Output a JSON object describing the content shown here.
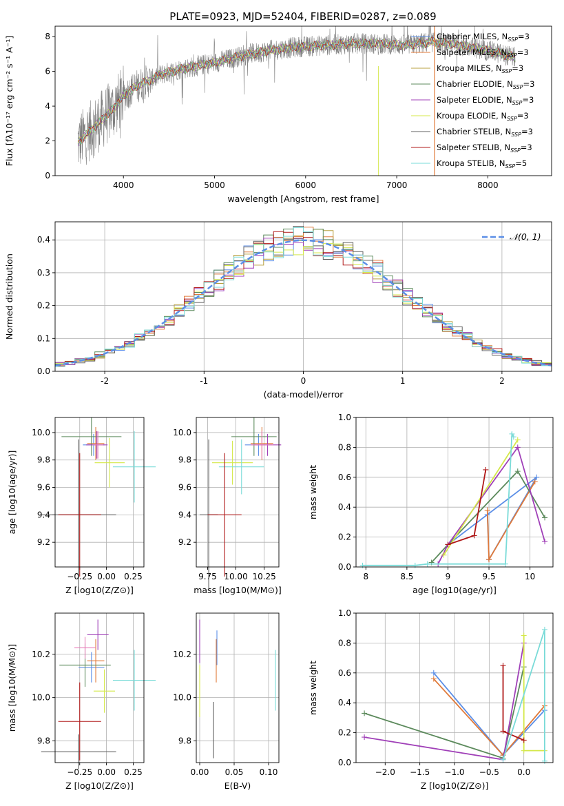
{
  "figure_title": "PLATE=0923, MJD=52404, FIBERID=0287, z=0.089",
  "colors": {
    "chabrier_miles": "#5b8ee6",
    "salpeter_miles": "#e07a3a",
    "kroupa_miles": "#b8a040",
    "chabrier_elodie": "#5c8a5c",
    "salpeter_elodie": "#a040b8",
    "kroupa_elodie": "#d4e84a",
    "chabrier_stelib": "#606060",
    "salpeter_stelib": "#b01818",
    "kroupa_stelib": "#7adbd8",
    "observed": "#808080",
    "gauss": "#5b8ee6",
    "pink": "#e87ab8"
  },
  "chart_data": [
    {
      "type": "line",
      "title": "PLATE=0923, MJD=52404, FIBERID=0287, z=0.089",
      "xlabel": "wavelength [Angstrom, rest frame]",
      "ylabel": "Flux [fλ10⁻¹⁷ erg cm⁻² s⁻¹ A⁻¹]",
      "xlim": [
        3250,
        8700
      ],
      "ylim": [
        0,
        8.6
      ],
      "xticks": [
        4000,
        5000,
        6000,
        7000,
        8000
      ],
      "yticks": [
        0,
        2,
        4,
        6,
        8
      ],
      "grid": false,
      "legend": [
        "Chabrier MILES, NSSP=3",
        "Salpeter MILES, NSSP=3",
        "Kroupa MILES, NSSP=3",
        "Chabrier ELODIE, NSSP=3",
        "Salpeter ELODIE, NSSP=3",
        "Kroupa ELODIE, NSSP=3",
        "Chabrier STELIB, NSSP=3",
        "Salpeter STELIB, NSSP=3",
        "Kroupa STELIB, NSSP=5"
      ],
      "legend_loc": "upper right",
      "continuum": {
        "x": [
          3500,
          3600,
          3700,
          3800,
          3900,
          4000,
          4100,
          4200,
          4300,
          4400,
          4600,
          4800,
          5000,
          5300,
          5600,
          5900,
          6200,
          6500,
          6800,
          7100,
          7400,
          7700,
          8000,
          8300
        ],
        "y": [
          1.9,
          2.4,
          2.9,
          3.4,
          3.9,
          4.6,
          5.0,
          5.3,
          5.5,
          5.8,
          6.1,
          6.3,
          6.5,
          6.9,
          7.2,
          7.4,
          7.5,
          7.6,
          7.6,
          7.5,
          7.7,
          7.5,
          7.2,
          6.8
        ]
      }
    },
    {
      "type": "histogram",
      "xlabel": "(data-model)/error",
      "ylabel": "Normed distribution",
      "xlim": [
        -2.5,
        2.5
      ],
      "ylim": [
        0,
        0.455
      ],
      "xticks": [
        -2,
        -1,
        0,
        1,
        2
      ],
      "yticks": [
        0.0,
        0.1,
        0.2,
        0.3,
        0.4
      ],
      "grid": true,
      "legend": [
        "𝒩(0, 1)"
      ],
      "legend_loc": "upper right",
      "bin_width": 0.1
    },
    {
      "type": "scatter",
      "xlabel": "Z [log10(Z/Z⊙)]",
      "ylabel": "age  [log10(age/yr)]",
      "xlim": [
        -0.48,
        0.35
      ],
      "ylim": [
        9.02,
        10.11
      ],
      "xticks": [
        -0.25,
        0.0,
        0.25
      ],
      "xticklabels": [
        "−0.25",
        "0.00",
        "0.25"
      ],
      "yticks": [
        9.2,
        9.4,
        9.6,
        9.8,
        10.0
      ],
      "grid": true,
      "points": [
        {
          "series": "chabrier_miles",
          "x": -0.12,
          "xerr": 0.1,
          "y": 9.91,
          "yerr": 0.08
        },
        {
          "series": "salpeter_miles",
          "x": -0.1,
          "xerr": 0.08,
          "y": 9.92,
          "yerr": 0.12
        },
        {
          "series": "chabrier_elodie",
          "x": -0.14,
          "xerr": 0.28,
          "y": 9.97,
          "yerr": 0.14
        },
        {
          "series": "salpeter_elodie",
          "x": -0.09,
          "xerr": 0.1,
          "y": 9.91,
          "yerr": 0.1
        },
        {
          "series": "kroupa_elodie",
          "x": 0.03,
          "xerr": 0.14,
          "y": 9.78,
          "yerr": 0.18
        },
        {
          "series": "kroupa_stelib",
          "x": 0.26,
          "xerr": 0.2,
          "y": 9.75,
          "yerr": 0.26
        },
        {
          "series": "pink",
          "x": -0.08,
          "xerr": 0.05,
          "y": 9.91,
          "yerr": 0.1
        },
        {
          "series": "chabrier_stelib",
          "x": -0.26,
          "xerr": 0.35,
          "y": 9.4,
          "yerr": 0.55
        },
        {
          "series": "salpeter_stelib",
          "x": -0.25,
          "xerr": 0.2,
          "y": 9.4,
          "yerr": 0.45
        }
      ]
    },
    {
      "type": "scatter",
      "xlabel": "mass [log10(M/M⊙)]",
      "ylabel": "",
      "xlim": [
        9.65,
        10.38
      ],
      "ylim": [
        9.02,
        10.11
      ],
      "xticks": [
        9.75,
        10.0,
        10.25
      ],
      "xticklabels": [
        "9.75",
        "10.00",
        "10.25"
      ],
      "yticks": [
        9.2,
        9.4,
        9.6,
        9.8,
        10.0
      ],
      "grid": true,
      "points": [
        {
          "series": "chabrier_miles",
          "x": 10.2,
          "xerr": 0.12,
          "y": 9.91,
          "yerr": 0.08
        },
        {
          "series": "salpeter_miles",
          "x": 10.23,
          "xerr": 0.1,
          "y": 9.92,
          "yerr": 0.12
        },
        {
          "series": "chabrier_elodie",
          "x": 10.16,
          "xerr": 0.2,
          "y": 9.97,
          "yerr": 0.14
        },
        {
          "series": "salpeter_elodie",
          "x": 10.28,
          "xerr": 0.12,
          "y": 9.91,
          "yerr": 0.08
        },
        {
          "series": "kroupa_elodie",
          "x": 9.97,
          "xerr": 0.18,
          "y": 9.78,
          "yerr": 0.16
        },
        {
          "series": "kroupa_stelib",
          "x": 10.05,
          "xerr": 0.2,
          "y": 9.75,
          "yerr": 0.2
        },
        {
          "series": "pink",
          "x": 10.23,
          "xerr": 0.1,
          "y": 9.91,
          "yerr": 0.1
        },
        {
          "series": "chabrier_stelib",
          "x": 9.76,
          "xerr": 0.08,
          "y": 9.4,
          "yerr": 0.55
        },
        {
          "series": "salpeter_stelib",
          "x": 9.9,
          "xerr": 0.15,
          "y": 9.4,
          "yerr": 0.45
        }
      ]
    },
    {
      "type": "line",
      "xlabel": "age  [log10(age/yr)]",
      "ylabel": "mass weight",
      "xlim": [
        7.88,
        10.28
      ],
      "ylim": [
        0,
        1.0
      ],
      "xticks": [
        8.0,
        8.5,
        9.0,
        9.5,
        10.0
      ],
      "yticks": [
        0.0,
        0.2,
        0.4,
        0.6,
        0.8,
        1.0
      ],
      "grid": true,
      "series": [
        {
          "name": "Chabrier MILES",
          "color": "chabrier_miles",
          "points": [
            [
              9.0,
              0.15
            ],
            [
              10.08,
              0.6
            ],
            [
              9.5,
              0.05
            ],
            [
              9.48,
              0.35
            ]
          ]
        },
        {
          "name": "Salpeter MILES",
          "color": "salpeter_miles",
          "points": [
            [
              9.48,
              0.38
            ],
            [
              9.5,
              0.05
            ],
            [
              10.06,
              0.57
            ]
          ]
        },
        {
          "name": "Chabrier ELODIE",
          "color": "chabrier_elodie",
          "points": [
            [
              8.8,
              0.03
            ],
            [
              9.0,
              0.15
            ],
            [
              9.85,
              0.64
            ],
            [
              10.18,
              0.33
            ]
          ]
        },
        {
          "name": "Salpeter ELODIE",
          "color": "salpeter_elodie",
          "points": [
            [
              8.88,
              0.02
            ],
            [
              9.0,
              0.15
            ],
            [
              9.85,
              0.8
            ],
            [
              10.18,
              0.17
            ]
          ]
        },
        {
          "name": "Kroupa ELODIE",
          "color": "kroupa_elodie",
          "points": [
            [
              8.95,
              0.08
            ],
            [
              9.85,
              0.85
            ]
          ]
        },
        {
          "name": "Salpeter STELIB",
          "color": "salpeter_stelib",
          "points": [
            [
              9.0,
              0.15
            ],
            [
              9.32,
              0.21
            ],
            [
              9.46,
              0.65
            ]
          ]
        },
        {
          "name": "Kroupa STELIB",
          "color": "kroupa_stelib",
          "points": [
            [
              7.96,
              0.01
            ],
            [
              8.6,
              0.01
            ],
            [
              8.75,
              0.02
            ],
            [
              9.7,
              0.02
            ],
            [
              9.78,
              0.89
            ],
            [
              9.8,
              0.87
            ]
          ]
        }
      ]
    },
    {
      "type": "scatter",
      "xlabel": "Z [log10(Z/Z⊙)]",
      "ylabel": "mass [log10(M/M⊙)]",
      "xlim": [
        -0.48,
        0.35
      ],
      "ylim": [
        9.7,
        10.39
      ],
      "xticks": [
        -0.25,
        0.0,
        0.25
      ],
      "xticklabels": [
        "−0.25",
        "0.00",
        "0.25"
      ],
      "yticks": [
        9.8,
        10.0,
        10.2
      ],
      "grid": true,
      "points": [
        {
          "series": "chabrier_miles",
          "x": -0.14,
          "xerr": 0.12,
          "y": 10.14,
          "yerr": 0.07
        },
        {
          "series": "salpeter_miles",
          "x": -0.1,
          "xerr": 0.08,
          "y": 10.17,
          "yerr": 0.1
        },
        {
          "series": "chabrier_elodie",
          "x": -0.2,
          "xerr": 0.24,
          "y": 10.15,
          "yerr": 0.1
        },
        {
          "series": "salpeter_elodie",
          "x": -0.08,
          "xerr": 0.1,
          "y": 10.29,
          "yerr": 0.07
        },
        {
          "series": "kroupa_elodie",
          "x": -0.02,
          "xerr": 0.1,
          "y": 10.03,
          "yerr": 0.1
        },
        {
          "series": "kroupa_stelib",
          "x": 0.26,
          "xerr": 0.2,
          "y": 10.08,
          "yerr": 0.14
        },
        {
          "series": "pink",
          "x": -0.2,
          "xerr": 0.1,
          "y": 10.23,
          "yerr": 0.05
        },
        {
          "series": "chabrier_stelib",
          "x": -0.26,
          "xerr": 0.35,
          "y": 9.75,
          "yerr": 0.08
        },
        {
          "series": "salpeter_stelib",
          "x": -0.25,
          "xerr": 0.2,
          "y": 9.89,
          "yerr": 0.18
        }
      ]
    },
    {
      "type": "scatter",
      "xlabel": "E(B-V)",
      "ylabel": "",
      "xlim": [
        -0.005,
        0.115
      ],
      "ylim": [
        9.7,
        10.39
      ],
      "xticks": [
        0.0,
        0.05,
        0.1
      ],
      "xticklabels": [
        "0.00",
        "0.05",
        "0.10"
      ],
      "yticks": [
        9.8,
        10.0,
        10.2
      ],
      "grid": true,
      "points": [
        {
          "series": "salpeter_elodie",
          "x": 0.0,
          "y": 10.26,
          "yerr": 0.1
        },
        {
          "series": "kroupa_elodie",
          "x": 0.0,
          "y": 10.03,
          "yerr": 0.12
        },
        {
          "series": "chabrier_miles",
          "x": 0.025,
          "y": 10.23,
          "yerr": 0.08
        },
        {
          "series": "salpeter_miles",
          "x": 0.024,
          "y": 10.17,
          "yerr": 0.1
        },
        {
          "series": "chabrier_stelib",
          "x": 0.02,
          "y": 9.85,
          "yerr": 0.13
        },
        {
          "series": "kroupa_stelib",
          "x": 0.11,
          "y": 10.08,
          "yerr": 0.14
        }
      ]
    },
    {
      "type": "line",
      "xlabel": "Z [log10(Z/Z⊙)]",
      "ylabel": "mass weight",
      "xlim": [
        -2.42,
        0.42
      ],
      "ylim": [
        0,
        1.0
      ],
      "xticks": [
        -2.0,
        -1.5,
        -1.0,
        -0.5,
        0.0
      ],
      "xticklabels": [
        "−2.0",
        "−1.5",
        "−1.0",
        "−0.5",
        "0.0"
      ],
      "yticks": [
        0.0,
        0.2,
        0.4,
        0.6,
        0.8,
        1.0
      ],
      "grid": true,
      "series": [
        {
          "name": "Chabrier MILES",
          "color": "chabrier_miles",
          "points": [
            [
              -1.3,
              0.6
            ],
            [
              -0.3,
              0.05
            ],
            [
              0.3,
              0.35
            ]
          ]
        },
        {
          "name": "Salpeter MILES",
          "color": "salpeter_miles",
          "points": [
            [
              -1.3,
              0.56
            ],
            [
              -0.3,
              0.05
            ],
            [
              0.3,
              0.38
            ]
          ]
        },
        {
          "name": "Chabrier ELODIE",
          "color": "chabrier_elodie",
          "points": [
            [
              -2.3,
              0.33
            ],
            [
              -0.3,
              0.03
            ],
            [
              0.0,
              0.64
            ]
          ]
        },
        {
          "name": "Salpeter ELODIE",
          "color": "salpeter_elodie",
          "points": [
            [
              -2.3,
              0.17
            ],
            [
              -0.3,
              0.02
            ],
            [
              0.0,
              0.8
            ]
          ]
        },
        {
          "name": "Kroupa ELODIE",
          "color": "kroupa_elodie",
          "points": [
            [
              0.3,
              0.08
            ],
            [
              0.0,
              0.08
            ],
            [
              0.0,
              0.85
            ]
          ]
        },
        {
          "name": "Salpeter STELIB",
          "color": "salpeter_stelib",
          "points": [
            [
              -0.3,
              0.65
            ],
            [
              -0.3,
              0.21
            ],
            [
              0.0,
              0.15
            ]
          ]
        },
        {
          "name": "Kroupa STELIB",
          "color": "kroupa_stelib",
          "points": [
            [
              -0.3,
              0.02
            ],
            [
              0.3,
              0.89
            ],
            [
              0.3,
              0.01
            ]
          ]
        }
      ]
    }
  ]
}
